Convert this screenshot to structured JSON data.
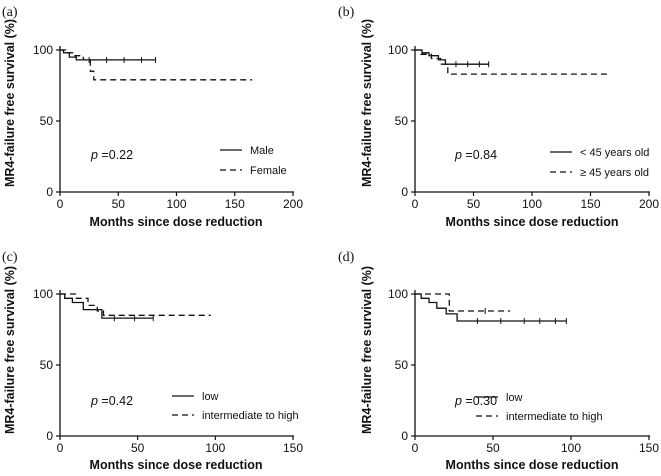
{
  "chart_data": [
    {
      "type": "line",
      "panel_label": "(a)",
      "xlabel": "Months since dose reduction",
      "ylabel": "MR4-failure free survival (%)",
      "xlim": [
        0,
        200
      ],
      "ylim": [
        0,
        100
      ],
      "xticks": [
        "0",
        "50",
        "100",
        "150",
        "200"
      ],
      "yticks": [
        "0",
        "50",
        "100"
      ],
      "p_prefix": "p",
      "p_value": " =0.22",
      "series": [
        {
          "name": "Male",
          "style": "solid",
          "x": [
            0,
            3,
            3,
            8,
            8,
            14,
            14,
            82
          ],
          "y": [
            100,
            100,
            98,
            98,
            95,
            95,
            93,
            93
          ],
          "censor": [
            25,
            40,
            55,
            70,
            82
          ]
        },
        {
          "name": "Female",
          "style": "dashed",
          "x": [
            0,
            5,
            5,
            12,
            12,
            20,
            20,
            26,
            26,
            29,
            29,
            165
          ],
          "y": [
            100,
            100,
            98,
            98,
            96,
            96,
            93,
            93,
            85,
            85,
            79,
            79
          ],
          "censor": []
        }
      ]
    },
    {
      "type": "line",
      "panel_label": "(b)",
      "xlabel": "Months since dose reduction",
      "ylabel": "MR4-failure free survival (%)",
      "xlim": [
        0,
        200
      ],
      "ylim": [
        0,
        100
      ],
      "xticks": [
        "0",
        "50",
        "100",
        "150",
        "200"
      ],
      "yticks": [
        "0",
        "50",
        "100"
      ],
      "p_prefix": "p",
      "p_value": " =0.84",
      "series": [
        {
          "name": "< 45 years old",
          "style": "solid",
          "x": [
            0,
            6,
            6,
            12,
            12,
            20,
            20,
            26,
            26,
            63
          ],
          "y": [
            100,
            100,
            98,
            98,
            96,
            96,
            93,
            93,
            90,
            90
          ],
          "censor": [
            35,
            45,
            55,
            63
          ]
        },
        {
          "name": "≥ 45 years old",
          "style": "dashed",
          "x": [
            0,
            5,
            5,
            14,
            14,
            22,
            22,
            28,
            28,
            165
          ],
          "y": [
            100,
            100,
            97,
            97,
            94,
            94,
            90,
            90,
            83,
            83
          ],
          "censor": []
        }
      ]
    },
    {
      "type": "line",
      "panel_label": "(c)",
      "xlabel": "Months since dose reduction",
      "ylabel": "MR4-failure free survival (%)",
      "xlim": [
        0,
        150
      ],
      "ylim": [
        0,
        100
      ],
      "xticks": [
        "0",
        "50",
        "100",
        "150"
      ],
      "yticks": [
        "0",
        "50",
        "100"
      ],
      "p_prefix": "p",
      "p_value": " =0.42",
      "series": [
        {
          "name": "low",
          "style": "solid",
          "x": [
            0,
            3,
            3,
            8,
            8,
            15,
            15,
            27,
            27,
            60
          ],
          "y": [
            100,
            100,
            97,
            97,
            94,
            94,
            89,
            89,
            83,
            83
          ],
          "censor": [
            35,
            48,
            60
          ]
        },
        {
          "name": "intermediate to high",
          "style": "dashed",
          "x": [
            0,
            10,
            10,
            18,
            18,
            24,
            24,
            28,
            28,
            97
          ],
          "y": [
            100,
            100,
            97,
            97,
            92,
            92,
            88,
            88,
            85,
            85
          ],
          "censor": []
        }
      ]
    },
    {
      "type": "line",
      "panel_label": "(d)",
      "xlabel": "Months since dose reduction",
      "ylabel": "MR4-failure free survival (%)",
      "xlim": [
        0,
        150
      ],
      "ylim": [
        0,
        100
      ],
      "xticks": [
        "0",
        "50",
        "100",
        "150"
      ],
      "yticks": [
        "0",
        "50",
        "100"
      ],
      "p_prefix": "p",
      "p_value": " =0.30",
      "series": [
        {
          "name": "low",
          "style": "solid",
          "x": [
            0,
            4,
            4,
            9,
            9,
            14,
            14,
            20,
            20,
            27,
            27,
            97
          ],
          "y": [
            100,
            100,
            97,
            97,
            94,
            94,
            90,
            90,
            86,
            86,
            81,
            81
          ],
          "censor": [
            40,
            55,
            70,
            80,
            90,
            97
          ]
        },
        {
          "name": "intermediate to high",
          "style": "dashed",
          "x": [
            0,
            22,
            22,
            61
          ],
          "y": [
            100,
            100,
            88,
            88
          ],
          "censor": [
            45
          ]
        }
      ]
    }
  ]
}
